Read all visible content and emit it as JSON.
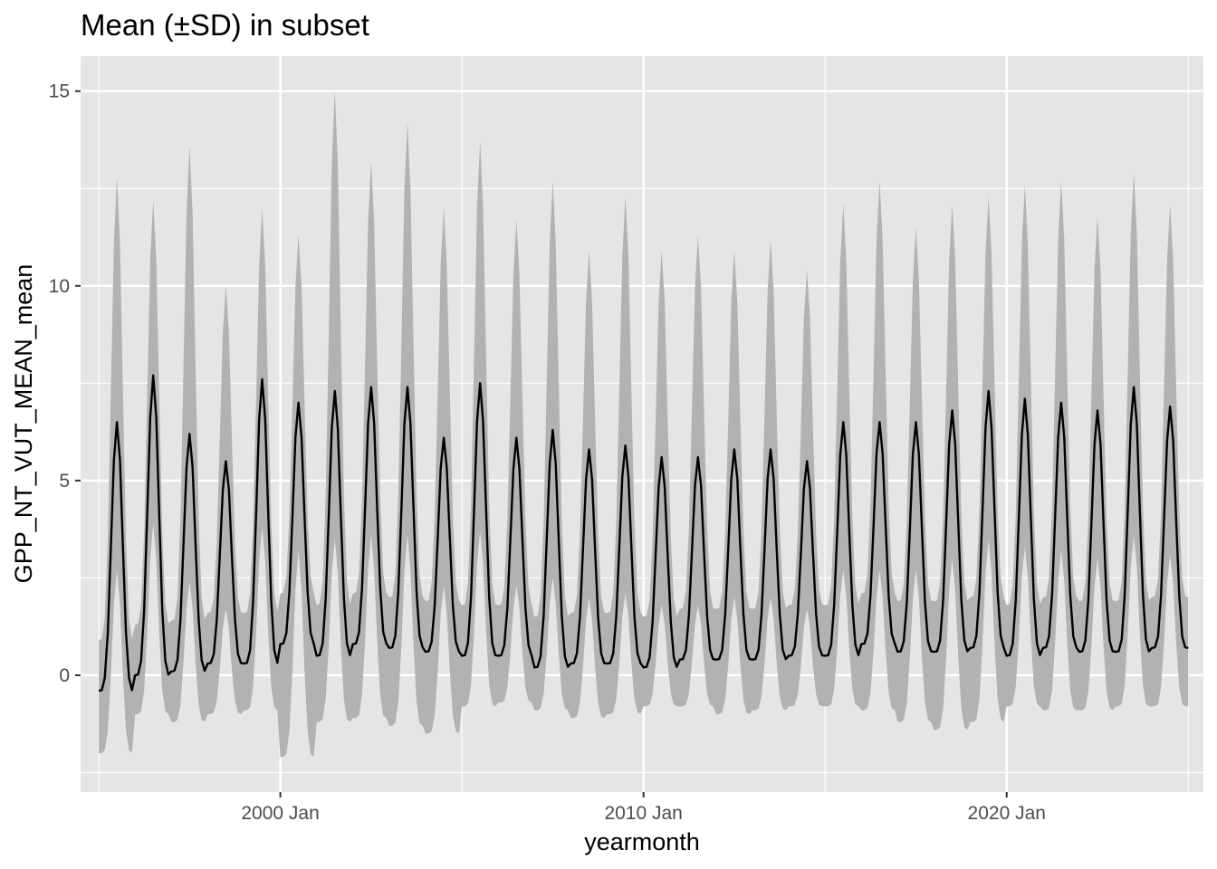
{
  "chart_data": {
    "type": "line",
    "title": "Mean (±SD) in subset",
    "xlabel": "yearmonth",
    "ylabel": "GPP_NT_VUT_MEAN_mean",
    "x_range": [
      "1994-07",
      "2025-06"
    ],
    "x_first": "1995-01",
    "x_last": "2025-01",
    "x_ticks": [
      {
        "date": "2000-01",
        "label": "2000 Jan"
      },
      {
        "date": "2010-01",
        "label": "2010 Jan"
      },
      {
        "date": "2020-01",
        "label": "2020 Jan"
      }
    ],
    "ylim": [
      -3.0,
      15.9
    ],
    "y_ticks": [
      0,
      5,
      10,
      15
    ],
    "grid": true,
    "background": "#e5e5e5",
    "grid_color": "#ffffff",
    "series": [
      {
        "role": "mean",
        "color": "#000000",
        "ribbon_color": "#b2b2b2",
        "peak_mean": [
          6.5,
          7.7,
          6.2,
          5.5,
          7.6,
          7.0,
          7.3,
          7.4,
          7.4,
          6.1,
          7.5,
          6.1,
          6.3,
          5.8,
          5.9,
          5.6,
          5.6,
          5.8,
          5.8,
          5.5,
          6.5,
          6.5,
          6.5,
          6.8,
          7.3,
          7.1,
          7.0,
          6.8,
          7.4,
          6.9
        ],
        "trough_mean": [
          -0.4,
          0.0,
          0.1,
          0.3,
          0.3,
          0.8,
          0.5,
          0.8,
          0.7,
          0.6,
          0.5,
          0.5,
          0.2,
          0.3,
          0.3,
          0.2,
          0.4,
          0.4,
          0.4,
          0.5,
          0.5,
          0.8,
          0.6,
          0.6,
          0.7,
          0.5,
          0.7,
          0.6,
          0.6,
          0.7
        ],
        "peak_upper": [
          12.8,
          12.2,
          13.6,
          10.0,
          12.0,
          11.3,
          15.0,
          13.2,
          14.2,
          12.0,
          13.7,
          11.7,
          12.7,
          10.9,
          12.3,
          10.9,
          11.3,
          10.9,
          11.2,
          10.4,
          12.1,
          12.7,
          11.5,
          12.1,
          12.3,
          12.6,
          12.7,
          11.8,
          12.9,
          12.1
        ],
        "trough_lower": [
          -2.0,
          -1.0,
          -1.2,
          -1.0,
          -0.9,
          -2.1,
          -1.2,
          -1.1,
          -1.3,
          -1.5,
          -0.8,
          -0.7,
          -0.9,
          -1.1,
          -1.0,
          -0.8,
          -0.8,
          -1.0,
          -0.9,
          -0.8,
          -0.8,
          -0.9,
          -1.2,
          -1.4,
          -1.2,
          -0.8,
          -0.9,
          -0.9,
          -0.8,
          -0.8
        ]
      }
    ]
  }
}
